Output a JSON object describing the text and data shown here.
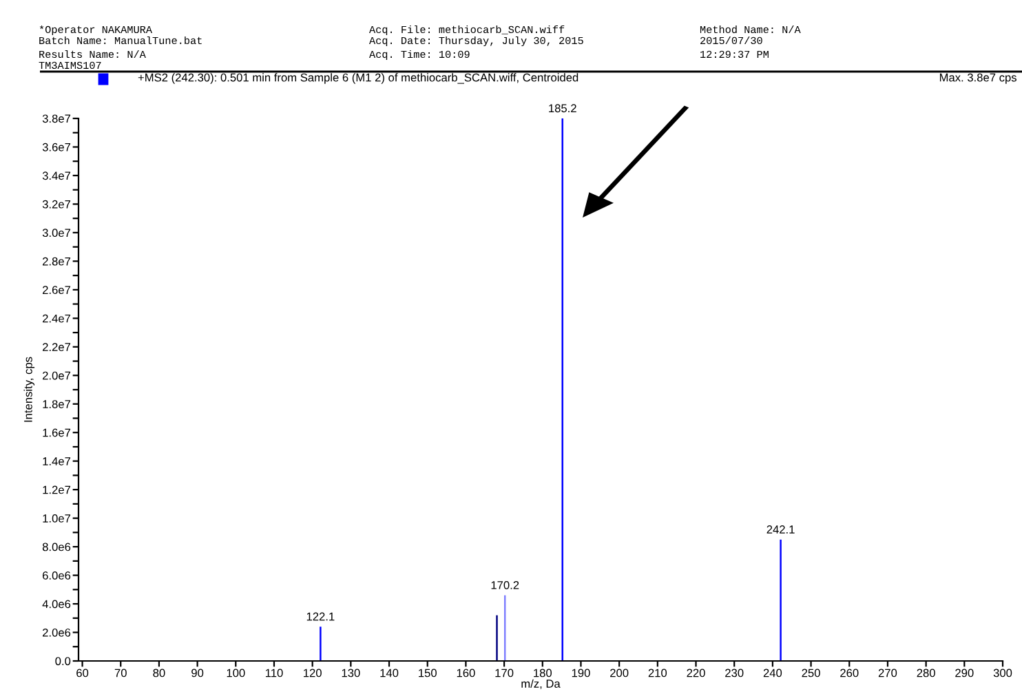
{
  "chart_data": {
    "type": "bar",
    "title": "+MS2 (242.30): 0.501 min from Sample 6 (M1 2) of methiocarb_SCAN.wiff, Centroided",
    "xlabel": "m/z, Da",
    "ylabel": "Intensity, cps",
    "x": [
      122.1,
      168.1,
      170.2,
      185.2,
      242.1
    ],
    "values": [
      2400000,
      3200000,
      4600000,
      38000000,
      8500000
    ],
    "colors": [
      "#0000ff",
      "#000080",
      "#7f7fff",
      "#0000ff",
      "#0000ff"
    ],
    "xlim": [
      59,
      300
    ],
    "xticks": [
      60,
      70,
      80,
      90,
      100,
      110,
      120,
      130,
      140,
      150,
      160,
      170,
      180,
      190,
      200,
      210,
      220,
      230,
      240,
      250,
      260,
      270,
      280,
      290,
      300
    ],
    "ylim": [
      0,
      38000000
    ],
    "yticks": [
      {
        "value": 0,
        "label": "0.0"
      },
      {
        "value": 1000000,
        "label": null
      },
      {
        "value": 2000000,
        "label": "2.0e6"
      },
      {
        "value": 3000000,
        "label": null
      },
      {
        "value": 4000000,
        "label": "4.0e6"
      },
      {
        "value": 5000000,
        "label": null
      },
      {
        "value": 6000000,
        "label": "6.0e6"
      },
      {
        "value": 7000000,
        "label": null
      },
      {
        "value": 8000000,
        "label": "8.0e6"
      },
      {
        "value": 9000000,
        "label": null
      },
      {
        "value": 10000000,
        "label": "1.0e7"
      },
      {
        "value": 11000000,
        "label": null
      },
      {
        "value": 12000000,
        "label": "1.2e7"
      },
      {
        "value": 13000000,
        "label": null
      },
      {
        "value": 14000000,
        "label": "1.4e7"
      },
      {
        "value": 15000000,
        "label": null
      },
      {
        "value": 16000000,
        "label": "1.6e7"
      },
      {
        "value": 17000000,
        "label": null
      },
      {
        "value": 18000000,
        "label": "1.8e7"
      },
      {
        "value": 19000000,
        "label": null
      },
      {
        "value": 20000000,
        "label": "2.0e7"
      },
      {
        "value": 21000000,
        "label": null
      },
      {
        "value": 22000000,
        "label": "2.2e7"
      },
      {
        "value": 23000000,
        "label": null
      },
      {
        "value": 24000000,
        "label": "2.4e7"
      },
      {
        "value": 25000000,
        "label": null
      },
      {
        "value": 26000000,
        "label": "2.6e7"
      },
      {
        "value": 27000000,
        "label": null
      },
      {
        "value": 28000000,
        "label": "2.8e7"
      },
      {
        "value": 29000000,
        "label": null
      },
      {
        "value": 30000000,
        "label": "3.0e7"
      },
      {
        "value": 31000000,
        "label": null
      },
      {
        "value": 32000000,
        "label": "3.2e7"
      },
      {
        "value": 33000000,
        "label": null
      },
      {
        "value": 34000000,
        "label": "3.4e7"
      },
      {
        "value": 35000000,
        "label": null
      },
      {
        "value": 36000000,
        "label": "3.6e7"
      },
      {
        "value": 37000000,
        "label": null
      },
      {
        "value": 38000000,
        "label": "3.8e7"
      }
    ],
    "grid": false,
    "legend": false,
    "annotations": [
      "*Operator NAKAMURA",
      "Batch Name: ManualTune.bat",
      "Results Name: N/A",
      "TM3AIMS107",
      "Acq. File: methiocarb_SCAN.wiff",
      "Acq. Date: Thursday, July 30, 2015",
      "Acq. Time: 10:09",
      "Method Name: N/A",
      "2015/07/30",
      "12:29:37 PM",
      "Max. 3.8e7 cps",
      {
        "text": "122.1",
        "x": 122.1,
        "y": 2400000
      },
      {
        "text": "170.2",
        "x": 170.2,
        "y": 4600000
      },
      {
        "text": "185.2",
        "x": 185.2,
        "y": 38000000
      },
      {
        "text": "242.1",
        "x": 242.1,
        "y": 8500000
      }
    ]
  }
}
